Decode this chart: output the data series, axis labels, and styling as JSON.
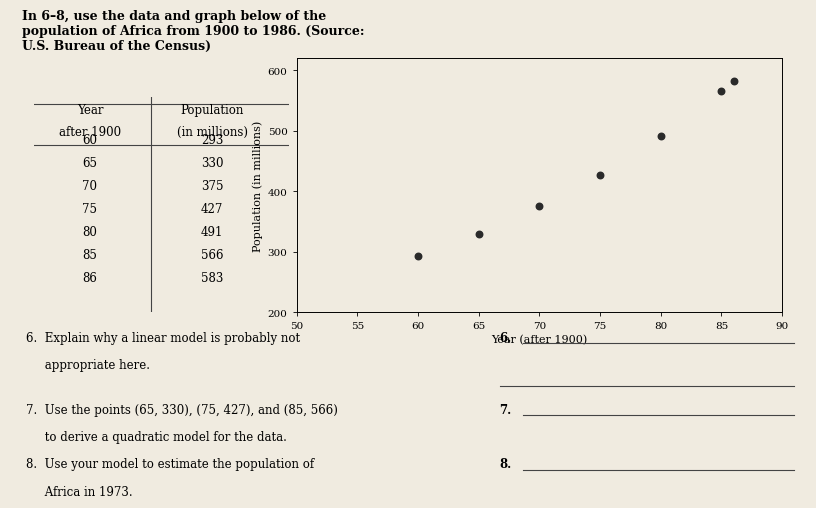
{
  "title_text": "In 6–8, use the data and graph below of the\npopulation of Africa from 1900 to 1986. (Source:\nU.S. Bureau of the Census)",
  "years": [
    60,
    65,
    70,
    75,
    80,
    85,
    86
  ],
  "populations": [
    293,
    330,
    375,
    427,
    491,
    566,
    583
  ],
  "xlabel": "Year (after 1900)",
  "ylabel": "Population (in millions)",
  "xlim": [
    50,
    90
  ],
  "ylim": [
    200,
    620
  ],
  "xticks": [
    50,
    55,
    60,
    65,
    70,
    75,
    80,
    85,
    90
  ],
  "yticks": [
    200,
    300,
    400,
    500,
    600
  ],
  "dot_color": "#2a2a2a",
  "dot_size": 22,
  "background_color": "#f0ebe0",
  "q6_text_a": "6.  Explain why a linear model is probably not",
  "q6_text_b": "     appropriate here.",
  "q7_text_a": "7.  Use the points (65, 330), (75, 427), and (85, 566)",
  "q7_text_b": "     to derive a quadratic model for the data.",
  "q8_text_a": "8.  Use your model to estimate the population of",
  "q8_text_b": "     Africa in 1973.",
  "q6_label": "6.",
  "q7_label": "7.",
  "q8_label": "8.",
  "line_color": "#444444",
  "font_size_title": 9.0,
  "font_size_table": 8.5,
  "font_size_axis_label": 8.0,
  "font_size_tick": 7.5,
  "font_size_question": 8.5,
  "table_header1": "Year",
  "table_header1b": "after 1900",
  "table_header2": "Population",
  "table_header2b": "(in millions)"
}
